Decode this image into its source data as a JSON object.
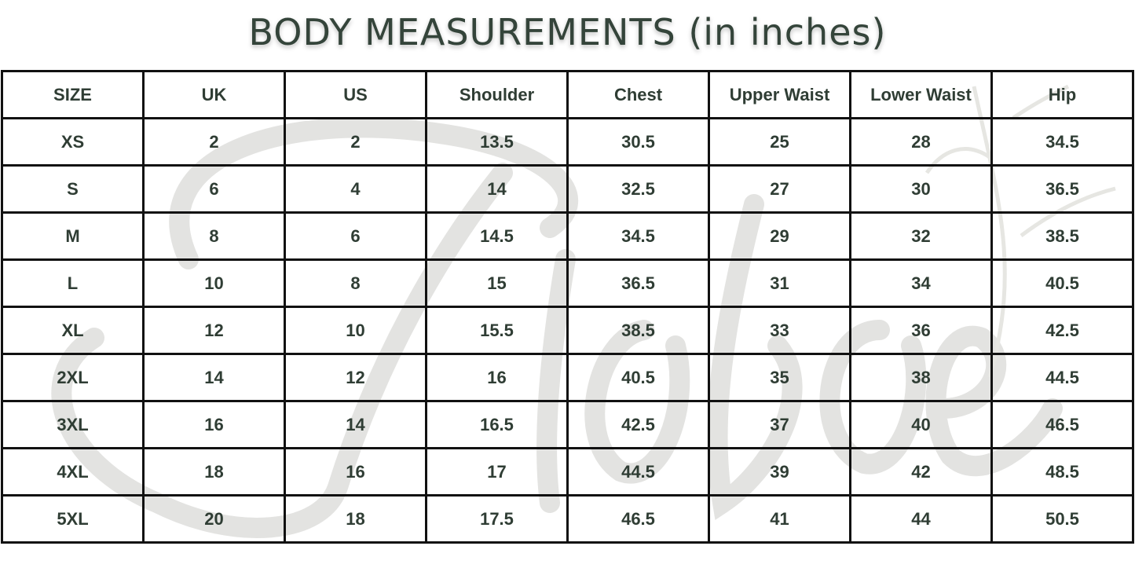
{
  "title": "BODY MEASUREMENTS (in inches)",
  "table": {
    "headers": [
      "SIZE",
      "UK",
      "US",
      "Shoulder",
      "Chest",
      "Upper Waist",
      "Lower Waist",
      "Hip"
    ],
    "rows": [
      [
        "XS",
        "2",
        "2",
        "13.5",
        "30.5",
        "25",
        "28",
        "34.5"
      ],
      [
        "S",
        "6",
        "4",
        "14",
        "32.5",
        "27",
        "30",
        "36.5"
      ],
      [
        "M",
        "8",
        "6",
        "14.5",
        "34.5",
        "29",
        "32",
        "38.5"
      ],
      [
        "L",
        "10",
        "8",
        "15",
        "36.5",
        "31",
        "34",
        "40.5"
      ],
      [
        "XL",
        "12",
        "10",
        "15.5",
        "38.5",
        "33",
        "36",
        "42.5"
      ],
      [
        "2XL",
        "14",
        "12",
        "16",
        "40.5",
        "35",
        "38",
        "44.5"
      ],
      [
        "3XL",
        "16",
        "14",
        "16.5",
        "42.5",
        "37",
        "40",
        "46.5"
      ],
      [
        "4XL",
        "18",
        "16",
        "17",
        "44.5",
        "39",
        "42",
        "48.5"
      ],
      [
        "5XL",
        "20",
        "18",
        "17.5",
        "46.5",
        "41",
        "44",
        "50.5"
      ]
    ]
  },
  "colors": {
    "text": "#2f3d34",
    "border": "#111111",
    "watermark": "#e3e3e1"
  }
}
